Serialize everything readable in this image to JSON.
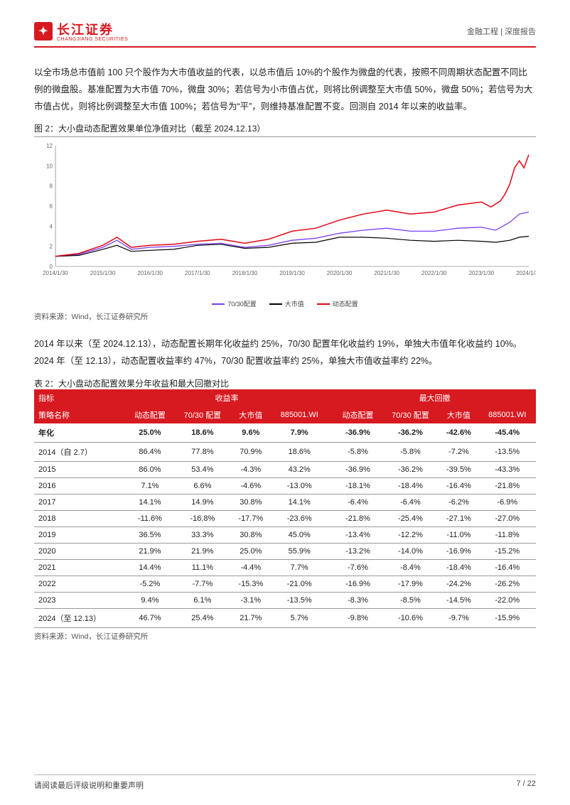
{
  "header": {
    "logo_cn": "长江证券",
    "logo_en": "CHANGJIANG SECURITIES",
    "right": "金融工程 | 深度报告"
  },
  "paragraph1": "以全市场总市值前 100 只个股作为大市值收益的代表，以总市值后 10%的个股作为微盘的代表，按照不同周期状态配置不同比例的微盘股。基准配置为大市值 70%，微盘 30%；若信号为小市值占优，则将比例调整至大市值 50%，微盘 50%；若信号为大市值占优，则将比例调整至大市值 100%；若信号为“平”，则维持基准配置不变。回测自 2014 年以来的收益率。",
  "figure2": {
    "caption": "图 2：大小盘动态配置效果单位净值对比（截至 2024.12.13）",
    "source": "资料来源：Wind，长江证券研究所",
    "chart": {
      "type": "line",
      "x_labels": [
        "2014/1/30",
        "2015/1/30",
        "2016/1/30",
        "2017/1/30",
        "2018/1/30",
        "2019/1/30",
        "2020/1/30",
        "2021/1/30",
        "2022/1/30",
        "2023/1/30",
        "2024/1/30"
      ],
      "x_positions": [
        0,
        0.1,
        0.2,
        0.3,
        0.4,
        0.5,
        0.6,
        0.7,
        0.8,
        0.9,
        1.0
      ],
      "ylim": [
        0,
        12
      ],
      "yticks": [
        0,
        2,
        4,
        6,
        8,
        10,
        12
      ],
      "background_color": "#ffffff",
      "axis_color": "#666666",
      "tick_fontsize": 8,
      "series": [
        {
          "name": "70/30配置",
          "color": "#7b3ff2",
          "width": 1.3,
          "points": [
            [
              0.0,
              1.0
            ],
            [
              0.05,
              1.2
            ],
            [
              0.1,
              1.9
            ],
            [
              0.13,
              2.6
            ],
            [
              0.16,
              1.7
            ],
            [
              0.2,
              1.9
            ],
            [
              0.25,
              2.0
            ],
            [
              0.3,
              2.2
            ],
            [
              0.35,
              2.3
            ],
            [
              0.4,
              1.9
            ],
            [
              0.45,
              2.1
            ],
            [
              0.5,
              2.6
            ],
            [
              0.55,
              2.8
            ],
            [
              0.6,
              3.3
            ],
            [
              0.65,
              3.6
            ],
            [
              0.7,
              3.8
            ],
            [
              0.75,
              3.5
            ],
            [
              0.8,
              3.5
            ],
            [
              0.85,
              3.8
            ],
            [
              0.9,
              3.9
            ],
            [
              0.93,
              3.6
            ],
            [
              0.96,
              4.4
            ],
            [
              0.98,
              5.2
            ],
            [
              1.0,
              5.4
            ]
          ]
        },
        {
          "name": "大市值",
          "color": "#000000",
          "width": 1.2,
          "points": [
            [
              0.0,
              1.0
            ],
            [
              0.05,
              1.1
            ],
            [
              0.1,
              1.7
            ],
            [
              0.13,
              2.1
            ],
            [
              0.16,
              1.5
            ],
            [
              0.2,
              1.6
            ],
            [
              0.25,
              1.7
            ],
            [
              0.3,
              2.1
            ],
            [
              0.35,
              2.2
            ],
            [
              0.4,
              1.8
            ],
            [
              0.45,
              1.9
            ],
            [
              0.5,
              2.3
            ],
            [
              0.55,
              2.4
            ],
            [
              0.6,
              2.9
            ],
            [
              0.65,
              2.9
            ],
            [
              0.7,
              2.8
            ],
            [
              0.75,
              2.6
            ],
            [
              0.8,
              2.5
            ],
            [
              0.85,
              2.6
            ],
            [
              0.9,
              2.5
            ],
            [
              0.93,
              2.4
            ],
            [
              0.96,
              2.6
            ],
            [
              0.98,
              2.9
            ],
            [
              1.0,
              3.0
            ]
          ]
        },
        {
          "name": "动态配置",
          "color": "#e30613",
          "width": 1.5,
          "points": [
            [
              0.0,
              1.0
            ],
            [
              0.05,
              1.3
            ],
            [
              0.1,
              2.1
            ],
            [
              0.13,
              2.9
            ],
            [
              0.16,
              1.9
            ],
            [
              0.2,
              2.1
            ],
            [
              0.25,
              2.2
            ],
            [
              0.3,
              2.5
            ],
            [
              0.35,
              2.7
            ],
            [
              0.4,
              2.3
            ],
            [
              0.45,
              2.7
            ],
            [
              0.5,
              3.5
            ],
            [
              0.55,
              3.8
            ],
            [
              0.6,
              4.6
            ],
            [
              0.65,
              5.2
            ],
            [
              0.7,
              5.6
            ],
            [
              0.75,
              5.2
            ],
            [
              0.8,
              5.4
            ],
            [
              0.85,
              6.1
            ],
            [
              0.9,
              6.4
            ],
            [
              0.92,
              5.9
            ],
            [
              0.94,
              6.5
            ],
            [
              0.95,
              7.2
            ],
            [
              0.96,
              8.2
            ],
            [
              0.97,
              9.8
            ],
            [
              0.98,
              10.5
            ],
            [
              0.99,
              9.8
            ],
            [
              1.0,
              11.1
            ]
          ]
        }
      ],
      "legend_items": [
        {
          "label": "70/30配置",
          "color": "#7b3ff2"
        },
        {
          "label": "大市值",
          "color": "#000000"
        },
        {
          "label": "动态配置",
          "color": "#e30613"
        }
      ]
    }
  },
  "paragraph2": "2014 年以来（至 2024.12.13），动态配置长期年化收益约 25%，70/30 配置年化收益约 19%，单独大市值年化收益约 10%。 2024 年（至 12.13），动态配置收益率约 47%，70/30 配置收益率约 25%，单独大市值收益率约 22%。",
  "table2": {
    "caption": "表 2：大小盘动态配置效果分年收益和最大回撤对比",
    "source": "资料来源：Wind，长江证券研究所",
    "header_group_left": "收益率",
    "header_group_right": "最大回撤",
    "header_indicator": "指标",
    "header_strategy": "策略名称",
    "cols_left": [
      "动态配置",
      "70/30 配置",
      "大市值",
      "885001.WI"
    ],
    "cols_right": [
      "动态配置",
      "70/30 配置",
      "大市值",
      "885001.WI"
    ],
    "rows": [
      {
        "label": "年化",
        "bold": true,
        "l": [
          "25.0%",
          "18.6%",
          "9.6%",
          "7.9%"
        ],
        "r": [
          "-36.9%",
          "-36.2%",
          "-42.6%",
          "-45.4%"
        ]
      },
      {
        "label": "2014（自 2.7）",
        "l": [
          "86.4%",
          "77.8%",
          "70.9%",
          "18.6%"
        ],
        "r": [
          "-5.8%",
          "-5.8%",
          "-7.2%",
          "-13.5%"
        ]
      },
      {
        "label": "2015",
        "l": [
          "86.0%",
          "53.4%",
          "-4.3%",
          "43.2%"
        ],
        "r": [
          "-36.9%",
          "-36.2%",
          "-39.5%",
          "-43.3%"
        ]
      },
      {
        "label": "2016",
        "l": [
          "7.1%",
          "6.6%",
          "-4.6%",
          "-13.0%"
        ],
        "r": [
          "-18.1%",
          "-18.4%",
          "-16.4%",
          "-21.8%"
        ]
      },
      {
        "label": "2017",
        "l": [
          "14.1%",
          "14.9%",
          "30.8%",
          "14.1%"
        ],
        "r": [
          "-6.4%",
          "-6.4%",
          "-6.2%",
          "-6.9%"
        ]
      },
      {
        "label": "2018",
        "l": [
          "-11.6%",
          "-16.8%",
          "-17.7%",
          "-23.6%"
        ],
        "r": [
          "-21.8%",
          "-25.4%",
          "-27.1%",
          "-27.0%"
        ]
      },
      {
        "label": "2019",
        "l": [
          "36.5%",
          "33.3%",
          "30.8%",
          "45.0%"
        ],
        "r": [
          "-13.4%",
          "-12.2%",
          "-11.0%",
          "-11.8%"
        ]
      },
      {
        "label": "2020",
        "l": [
          "21.9%",
          "21.9%",
          "25.0%",
          "55.9%"
        ],
        "r": [
          "-13.2%",
          "-14.0%",
          "-16.9%",
          "-15.2%"
        ]
      },
      {
        "label": "2021",
        "l": [
          "14.4%",
          "11.1%",
          "-4.4%",
          "7.7%"
        ],
        "r": [
          "-7.6%",
          "-8.4%",
          "-18.4%",
          "-16.4%"
        ]
      },
      {
        "label": "2022",
        "l": [
          "-5.2%",
          "-7.7%",
          "-15.3%",
          "-21.0%"
        ],
        "r": [
          "-16.9%",
          "-17.9%",
          "-24.2%",
          "-26.2%"
        ]
      },
      {
        "label": "2023",
        "l": [
          "9.4%",
          "6.1%",
          "-3.1%",
          "-13.5%"
        ],
        "r": [
          "-8.3%",
          "-8.5%",
          "-14.5%",
          "-22.0%"
        ]
      },
      {
        "label": "2024（至 12.13）",
        "l": [
          "46.7%",
          "25.4%",
          "21.7%",
          "5.7%"
        ],
        "r": [
          "-9.8%",
          "-10.6%",
          "-9.7%",
          "-15.9%"
        ]
      }
    ]
  },
  "footer": {
    "left": "请阅读最后评级说明和重要声明",
    "right": "7 / 22"
  }
}
